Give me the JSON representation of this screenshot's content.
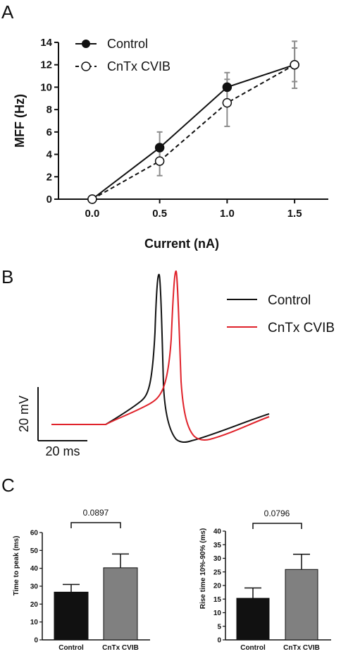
{
  "panels": {
    "a": "A",
    "b": "B",
    "c": "C"
  },
  "colors": {
    "black": "#111111",
    "red": "#e0232b",
    "gray_bar": "#808080",
    "error_gray": "#8c8c8c"
  },
  "chart_data": [
    {
      "id": "mff",
      "type": "line",
      "title": "",
      "xlabel": "Current (nA)",
      "ylabel": "MFF (Hz)",
      "x": [
        0.0,
        0.5,
        1.0,
        1.5
      ],
      "xticks": [
        "0.0",
        "0.5",
        "1.0",
        "1.5"
      ],
      "xlim": [
        -0.25,
        1.75
      ],
      "ylim": [
        0,
        14
      ],
      "yticks": [
        "0",
        "2",
        "4",
        "6",
        "8",
        "10",
        "12",
        "14"
      ],
      "legend_position": "top-left",
      "series": [
        {
          "name": "Control",
          "values": [
            0,
            4.6,
            10.0,
            12.0
          ],
          "error": [
            0,
            1.4,
            1.3,
            1.5
          ],
          "marker": "filled",
          "line": "solid"
        },
        {
          "name": "CnTx CVIB",
          "values": [
            0,
            3.4,
            8.6,
            12.0
          ],
          "error": [
            0,
            1.3,
            2.1,
            2.1
          ],
          "marker": "open",
          "line": "dashed"
        }
      ]
    },
    {
      "id": "traces",
      "type": "line",
      "title": "",
      "legend_position": "top-right",
      "series": [
        {
          "name": "Control",
          "color": "#111111"
        },
        {
          "name": "CnTx CVIB",
          "color": "#e0232b"
        }
      ],
      "scale_bar": {
        "voltage": "20 mV",
        "time": "20 ms"
      }
    },
    {
      "id": "time-to-peak",
      "type": "bar",
      "categories": [
        "Control",
        "CnTx CVIB"
      ],
      "values": [
        26.7,
        40.3
      ],
      "error": [
        4.3,
        7.7
      ],
      "ylabel": "Time to peak (ms)",
      "ylim": [
        0,
        60
      ],
      "yticks": [
        "0",
        "10",
        "20",
        "30",
        "40",
        "50",
        "60"
      ],
      "p_value": "0.0897"
    },
    {
      "id": "rise-time",
      "type": "bar",
      "categories": [
        "Control",
        "CnTx CVIB"
      ],
      "values": [
        15.3,
        25.9
      ],
      "error": [
        3.8,
        5.6
      ],
      "ylabel": "Rise time 10%-90% (ms)",
      "ylim": [
        0,
        40
      ],
      "yticks": [
        "0",
        "5",
        "10",
        "15",
        "20",
        "25",
        "30",
        "35",
        "40"
      ],
      "p_value": "0.0796"
    }
  ]
}
